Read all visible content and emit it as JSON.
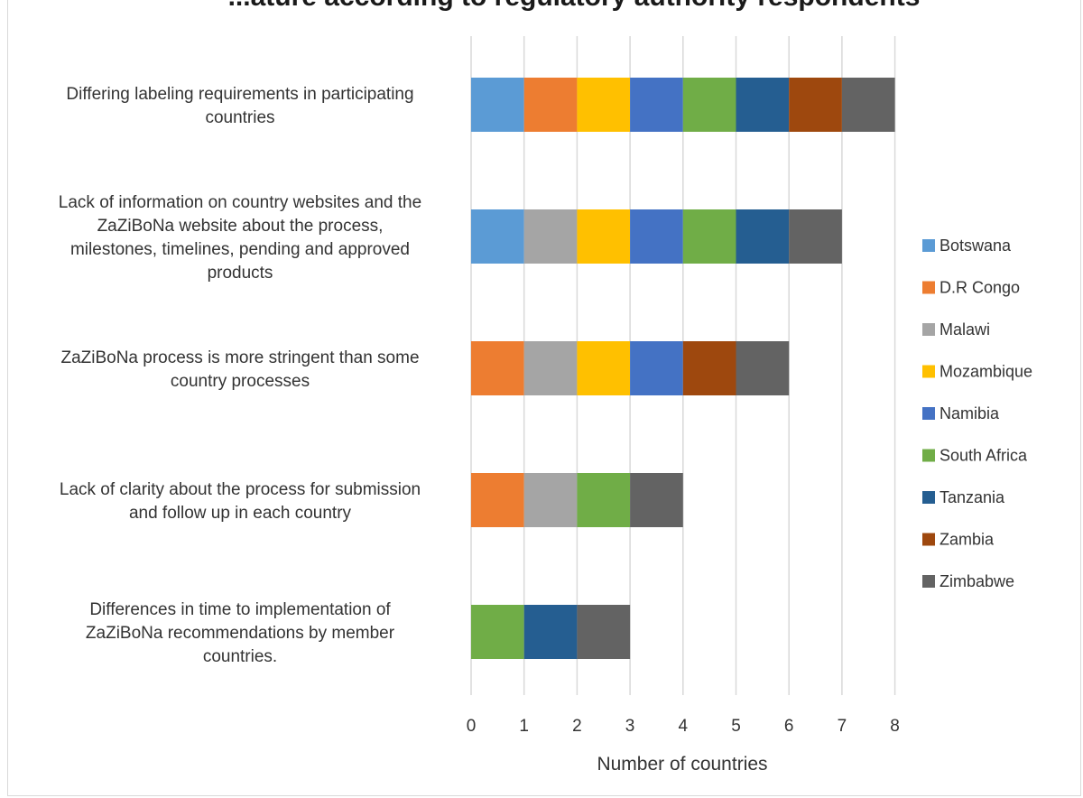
{
  "chart_data": {
    "type": "bar",
    "orientation": "horizontal",
    "stacked": true,
    "title": "...ature according to regulatory authority respondents",
    "xlabel": "Number of countries",
    "ylabel": "",
    "xlim": [
      0,
      8
    ],
    "x_ticks": [
      "0",
      "1",
      "2",
      "3",
      "4",
      "5",
      "6",
      "7",
      "8"
    ],
    "grid": "vertical",
    "legend_position": "right",
    "categories": [
      [
        "Differing labeling requirements in participating",
        "countries"
      ],
      [
        "Lack of information on country websites and the",
        "ZaZiBoNa website about the process,",
        "milestones, timelines, pending and approved",
        "products"
      ],
      [
        "ZaZiBoNa process is more stringent than some",
        "country processes"
      ],
      [
        "Lack of clarity about the process for submission",
        "and follow up in each country"
      ],
      [
        "Differences in time to implementation of",
        "ZaZiBoNa recommendations by member",
        "countries."
      ]
    ],
    "series": [
      {
        "name": "Botswana",
        "color": "#5b9bd5",
        "values": [
          1,
          1,
          0,
          0,
          0
        ]
      },
      {
        "name": "D.R Congo",
        "color": "#ed7d31",
        "values": [
          1,
          0,
          1,
          1,
          0
        ]
      },
      {
        "name": "Malawi",
        "color": "#a5a5a5",
        "values": [
          0,
          1,
          1,
          1,
          0
        ]
      },
      {
        "name": "Mozambique",
        "color": "#ffc000",
        "values": [
          1,
          1,
          1,
          0,
          0
        ]
      },
      {
        "name": "Namibia",
        "color": "#4472c4",
        "values": [
          1,
          1,
          1,
          0,
          0
        ]
      },
      {
        "name": "South Africa",
        "color": "#70ad47",
        "values": [
          1,
          1,
          0,
          1,
          1
        ]
      },
      {
        "name": "Tanzania",
        "color": "#255e91",
        "values": [
          1,
          1,
          0,
          0,
          1
        ]
      },
      {
        "name": "Zambia",
        "color": "#9e480e",
        "values": [
          1,
          0,
          1,
          0,
          0
        ]
      },
      {
        "name": "Zimbabwe",
        "color": "#636363",
        "values": [
          1,
          1,
          1,
          1,
          1
        ]
      }
    ]
  }
}
